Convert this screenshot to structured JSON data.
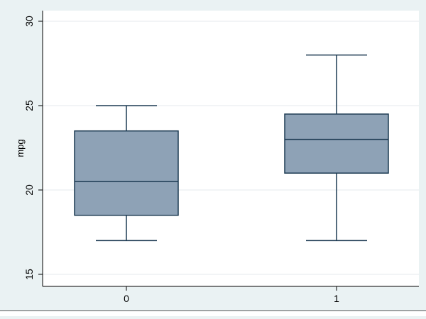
{
  "chart_data": {
    "type": "box",
    "categories": [
      "0",
      "1"
    ],
    "series": [
      {
        "boxes": [
          {
            "category": "0",
            "whisker_low": 17,
            "q1": 18.5,
            "median": 20.5,
            "q3": 23.5,
            "whisker_high": 25
          },
          {
            "category": "1",
            "whisker_low": 17,
            "q1": 21,
            "median": 23,
            "q3": 24.5,
            "whisker_high": 28
          }
        ]
      }
    ],
    "title": "",
    "xlabel": "",
    "ylabel": "mpg",
    "ylim": [
      15,
      30
    ],
    "yticks": [
      15,
      20,
      25,
      30
    ],
    "ytick_labels": [
      "15",
      "20",
      "25",
      "30"
    ],
    "grid": true,
    "legend": "none",
    "colors": {
      "background": "#eaf2f3",
      "plot_background": "#ffffff",
      "box_fill": "#8ea2b6",
      "box_stroke": "#1c3a52",
      "grid": "#e6eaec",
      "axis": "#000000"
    }
  }
}
